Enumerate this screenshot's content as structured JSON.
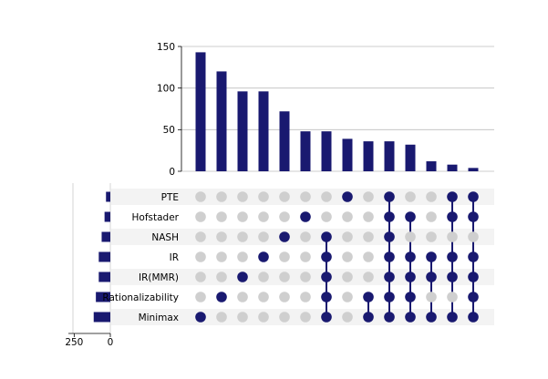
{
  "chart_data": {
    "type": "upset",
    "title": "",
    "xlabel": "",
    "ylabel": "",
    "colors": {
      "active": "#191970",
      "inactive": "#cfcfcf",
      "row_shade": "#f3f3f3",
      "grid": "#bdbdbd",
      "axis": "#000000"
    },
    "grid": true,
    "sets": [
      "PTE",
      "Hofstader",
      "NASH",
      "IR",
      "IR(MMR)",
      "Rationalizability",
      "Minimax"
    ],
    "set_sizes": [
      30,
      40,
      60,
      80,
      80,
      100,
      115
    ],
    "set_size_ticks": [
      250,
      0
    ],
    "set_size_xlim": [
      0,
      290
    ],
    "intersection_ylim": [
      0,
      150
    ],
    "intersection_ticks": [
      0,
      50,
      100,
      150
    ],
    "intersections": [
      {
        "size": 143,
        "members": [
          "Minimax"
        ]
      },
      {
        "size": 120,
        "members": [
          "Rationalizability"
        ]
      },
      {
        "size": 96,
        "members": [
          "IR(MMR)"
        ]
      },
      {
        "size": 96,
        "members": [
          "IR"
        ]
      },
      {
        "size": 72,
        "members": [
          "NASH"
        ]
      },
      {
        "size": 48,
        "members": [
          "Hofstader"
        ]
      },
      {
        "size": 48,
        "members": [
          "Minimax",
          "Rationalizability",
          "IR(MMR)",
          "IR",
          "NASH"
        ]
      },
      {
        "size": 39,
        "members": [
          "PTE"
        ]
      },
      {
        "size": 36,
        "members": [
          "Minimax",
          "Rationalizability"
        ]
      },
      {
        "size": 36,
        "members": [
          "Minimax",
          "Rationalizability",
          "IR(MMR)",
          "IR",
          "NASH",
          "Hofstader",
          "PTE"
        ]
      },
      {
        "size": 32,
        "members": [
          "Minimax",
          "Rationalizability",
          "IR(MMR)",
          "IR",
          "Hofstader"
        ]
      },
      {
        "size": 12,
        "members": [
          "Minimax",
          "IR(MMR)",
          "IR"
        ]
      },
      {
        "size": 8,
        "members": [
          "Minimax",
          "IR(MMR)",
          "IR",
          "Hofstader",
          "PTE"
        ]
      },
      {
        "size": 4,
        "members": [
          "Minimax",
          "Rationalizability",
          "IR(MMR)",
          "IR",
          "Hofstader",
          "PTE"
        ]
      }
    ]
  }
}
